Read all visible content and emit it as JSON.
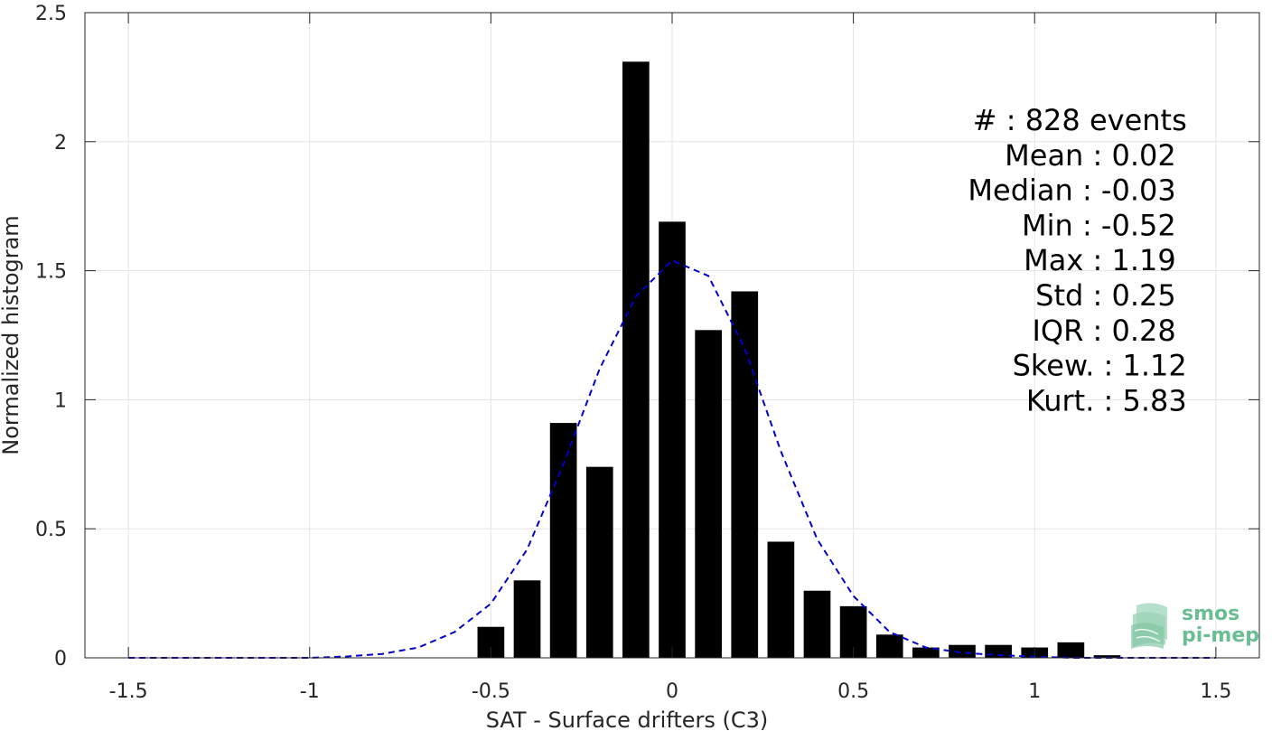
{
  "chart_data": {
    "type": "bar",
    "xlabel": "SAT - Surface drifters (C3)",
    "ylabel": "Normalized histogram",
    "xlim": [
      -1.62,
      1.62
    ],
    "ylim": [
      0,
      2.5
    ],
    "xticks": [
      -1.5,
      -1,
      -0.5,
      0,
      0.5,
      1,
      1.5
    ],
    "xtick_labels": [
      "-1.5",
      "-1",
      "-0.5",
      "0",
      "0.5",
      "1",
      "1.5"
    ],
    "yticks": [
      0,
      0.5,
      1,
      1.5,
      2,
      2.5
    ],
    "ytick_labels": [
      "0",
      "0.5",
      "1",
      "1.5",
      "2",
      "2.5"
    ],
    "grid": true,
    "bin_width": 0.1,
    "bars": {
      "x": [
        -0.5,
        -0.4,
        -0.3,
        -0.2,
        -0.1,
        0.0,
        0.1,
        0.2,
        0.3,
        0.4,
        0.5,
        0.6,
        0.7,
        0.8,
        0.9,
        1.0,
        1.1,
        1.2
      ],
      "values": [
        0.12,
        0.3,
        0.91,
        0.74,
        2.31,
        1.69,
        1.27,
        1.42,
        0.45,
        0.26,
        0.2,
        0.09,
        0.04,
        0.05,
        0.05,
        0.04,
        0.06,
        0.01
      ],
      "color": "#000000"
    },
    "fit_curve": {
      "style": "dashed",
      "color": "#0000cc",
      "x": [
        -1.5,
        -1.3,
        -1.1,
        -1.0,
        -0.9,
        -0.8,
        -0.7,
        -0.6,
        -0.5,
        -0.4,
        -0.3,
        -0.2,
        -0.1,
        0.0,
        0.1,
        0.2,
        0.3,
        0.4,
        0.5,
        0.6,
        0.7,
        0.8,
        0.9,
        1.0,
        1.1,
        1.2,
        1.3,
        1.5
      ],
      "y": [
        0.0,
        0.0,
        0.0,
        0.0,
        0.005,
        0.015,
        0.04,
        0.1,
        0.21,
        0.42,
        0.75,
        1.12,
        1.4,
        1.54,
        1.48,
        1.2,
        0.8,
        0.46,
        0.24,
        0.1,
        0.04,
        0.02,
        0.01,
        0.005,
        0.0,
        0.0,
        0.0,
        0.0
      ]
    },
    "annotations": [
      {
        "label": "#  : 828 events",
        "anchor": "right",
        "x_data": 1.42
      },
      {
        "label": "Mean : 0.02",
        "anchor": "right",
        "x_data": 1.39
      },
      {
        "label": "Median : -0.03",
        "anchor": "right",
        "x_data": 1.39
      },
      {
        "label": "Min : -0.52",
        "anchor": "right",
        "x_data": 1.39
      },
      {
        "label": "Max : 1.19",
        "anchor": "right",
        "x_data": 1.39
      },
      {
        "label": "Std : 0.25",
        "anchor": "right",
        "x_data": 1.39
      },
      {
        "label": "IQR : 0.28",
        "anchor": "right",
        "x_data": 1.39
      },
      {
        "label": "Skew. : 1.12",
        "anchor": "right",
        "x_data": 1.42
      },
      {
        "label": "Kurt. : 5.83",
        "anchor": "right",
        "x_data": 1.42
      }
    ]
  },
  "logo": {
    "line1": "smos",
    "line2": "pi-mep",
    "color": "#4fae82"
  }
}
